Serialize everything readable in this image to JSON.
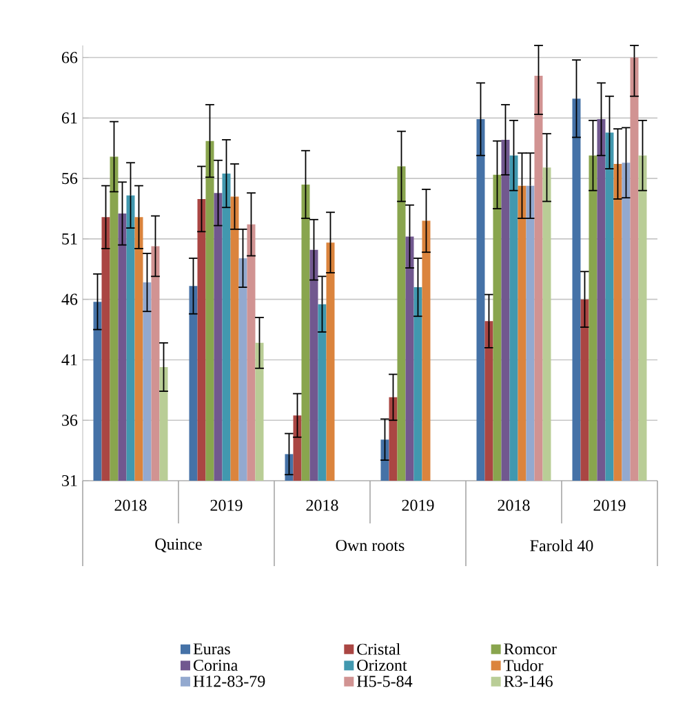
{
  "chart_data": {
    "type": "bar",
    "categories": [
      "2018",
      "2019",
      "2018",
      "2019",
      "2018",
      "2019"
    ],
    "annotations": [
      "Quince",
      "Own roots",
      "Farold 40"
    ],
    "ylim": [
      31,
      67
    ],
    "yticks": [
      31,
      36,
      41,
      46,
      51,
      56,
      61,
      66
    ],
    "grid": "y",
    "legend": "bottom",
    "series": [
      {
        "name": "Euras",
        "color": "#4572a7",
        "values": [
          45.8,
          47.1,
          33.2,
          34.4,
          60.9,
          62.6
        ],
        "errors": [
          2.3,
          2.3,
          1.7,
          1.7,
          3.0,
          3.2
        ]
      },
      {
        "name": "Cristal",
        "color": "#aa4643",
        "values": [
          52.8,
          54.3,
          36.4,
          37.9,
          44.2,
          46.0
        ],
        "errors": [
          2.6,
          2.7,
          1.8,
          1.9,
          2.2,
          2.3
        ]
      },
      {
        "name": "Romcor",
        "color": "#89a54e",
        "values": [
          57.8,
          59.1,
          55.5,
          57.0,
          56.3,
          57.9
        ],
        "errors": [
          2.9,
          3.0,
          2.8,
          2.9,
          2.8,
          2.9
        ]
      },
      {
        "name": "Corina",
        "color": "#71588f",
        "values": [
          53.1,
          54.8,
          50.1,
          51.2,
          59.2,
          60.9
        ],
        "errors": [
          2.6,
          2.7,
          2.5,
          2.6,
          2.9,
          3.0
        ]
      },
      {
        "name": "Orizont",
        "color": "#4198af",
        "values": [
          54.6,
          56.4,
          45.6,
          47.0,
          57.9,
          59.8
        ],
        "errors": [
          2.7,
          2.8,
          2.3,
          2.4,
          2.9,
          3.0
        ]
      },
      {
        "name": "Tudor",
        "color": "#db843d",
        "values": [
          52.8,
          54.5,
          50.7,
          52.5,
          55.4,
          57.2
        ],
        "errors": [
          2.6,
          2.7,
          2.5,
          2.6,
          2.7,
          2.9
        ]
      },
      {
        "name": "H12-83-79",
        "color": "#93a9cf",
        "values": [
          47.4,
          49.4,
          null,
          null,
          55.4,
          57.3
        ],
        "errors": [
          2.4,
          2.4,
          null,
          null,
          2.7,
          2.9
        ]
      },
      {
        "name": "H5-5-84",
        "color": "#d19392",
        "values": [
          50.4,
          52.2,
          null,
          null,
          64.5,
          66.0
        ],
        "errors": [
          2.5,
          2.6,
          null,
          null,
          [
            61.3,
            67
          ],
          [
            62.8,
            67
          ]
        ]
      },
      {
        "name": "R3-146",
        "color": "#b9cd96",
        "values": [
          40.4,
          42.4,
          null,
          null,
          56.9,
          57.9
        ],
        "errors": [
          2.0,
          2.1,
          null,
          null,
          2.8,
          2.9
        ]
      }
    ]
  }
}
